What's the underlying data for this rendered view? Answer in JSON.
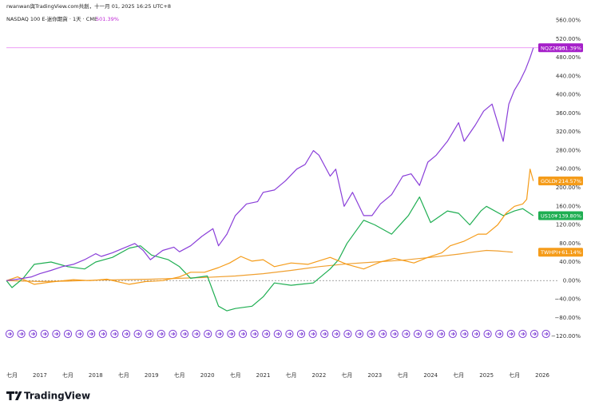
{
  "chart_data": {
    "type": "line",
    "credit": "rwanwan與TradingView.com共創，十一月 01, 2025 16:25 UTC+8",
    "title": "NASDAQ 100 E-迷你期貨 · 1天 · CME",
    "title_value": "501.39%",
    "brand": "TradingView",
    "xlim": [
      2016.4,
      2026.3
    ],
    "xticks": [
      {
        "value": 2016.5,
        "label": "七月"
      },
      2017,
      {
        "value": 2017.5,
        "label": "七月"
      },
      2018,
      {
        "value": 2018.5,
        "label": "七月"
      },
      2019,
      {
        "value": 2019.5,
        "label": "七月"
      },
      2020,
      {
        "value": 2020.5,
        "label": "七月"
      },
      2021,
      {
        "value": 2021.5,
        "label": "七月"
      },
      2022,
      {
        "value": 2022.5,
        "label": "七月"
      },
      2023,
      {
        "value": 2023.5,
        "label": "七月"
      },
      2024,
      {
        "value": 2024.5,
        "label": "七月"
      },
      2025,
      {
        "value": 2025.5,
        "label": "七月"
      },
      2026
    ],
    "ylim": [
      -144,
      587
    ],
    "yticks": [
      {
        "value": 560,
        "label": "560.00%"
      },
      {
        "value": 520,
        "label": "520.00%"
      },
      {
        "value": 480,
        "label": "480.00%"
      },
      {
        "value": 440,
        "label": "440.00%"
      },
      {
        "value": 400,
        "label": "400.00%"
      },
      {
        "value": 360,
        "label": "360.00%"
      },
      {
        "value": 320,
        "label": "320.00%"
      },
      {
        "value": 280,
        "label": "280.00%"
      },
      {
        "value": 240,
        "label": "240.00%"
      },
      {
        "value": 200,
        "label": "200.00%"
      },
      {
        "value": 160,
        "label": "160.00%"
      },
      {
        "value": 120,
        "label": "120.00%"
      },
      {
        "value": 80,
        "label": "80.00%"
      },
      {
        "value": 40,
        "label": "40.00%"
      },
      {
        "value": 0,
        "label": "0.00%"
      },
      {
        "value": -40,
        "label": "−40.00%"
      },
      {
        "value": -80,
        "label": "−80.00%"
      },
      {
        "value": -120,
        "label": "−120.00%"
      }
    ],
    "series": [
      {
        "name": "NQZ2025",
        "color": "#8a3fd9",
        "label_color": "#a51fc9",
        "end_label": {
          "value": 501.39,
          "label": "+501.39%"
        },
        "x": [
          2016.4,
          2016.6,
          2016.85,
          2017.0,
          2017.2,
          2017.4,
          2017.6,
          2017.8,
          2018.0,
          2018.1,
          2018.3,
          2018.5,
          2018.7,
          2018.85,
          2018.98,
          2019.2,
          2019.4,
          2019.5,
          2019.7,
          2019.9,
          2020.1,
          2020.2,
          2020.35,
          2020.5,
          2020.7,
          2020.9,
          2021.0,
          2021.2,
          2021.4,
          2021.6,
          2021.75,
          2021.9,
          2022.0,
          2022.2,
          2022.3,
          2022.45,
          2022.6,
          2022.8,
          2022.95,
          2023.1,
          2023.3,
          2023.5,
          2023.65,
          2023.8,
          2023.95,
          2024.1,
          2024.3,
          2024.5,
          2024.6,
          2024.8,
          2024.95,
          2025.1,
          2025.2,
          2025.3,
          2025.4,
          2025.5,
          2025.6,
          2025.7,
          2025.78,
          2025.84
        ],
        "values": [
          0,
          3,
          8,
          15,
          22,
          30,
          35,
          45,
          58,
          52,
          60,
          70,
          80,
          65,
          45,
          65,
          72,
          62,
          75,
          95,
          112,
          75,
          100,
          140,
          165,
          170,
          190,
          195,
          215,
          240,
          250,
          280,
          270,
          225,
          240,
          160,
          190,
          140,
          140,
          165,
          185,
          225,
          230,
          205,
          255,
          270,
          300,
          340,
          300,
          335,
          365,
          380,
          340,
          300,
          380,
          410,
          430,
          455,
          480,
          501.39
        ]
      },
      {
        "name": "GOLD",
        "color": "#f59c1a",
        "label_color": "#f59c1a",
        "end_label": {
          "value": 214.57,
          "label": "+214.57%"
        },
        "x": [
          2016.4,
          2016.6,
          2016.9,
          2017.2,
          2017.6,
          2017.9,
          2018.2,
          2018.6,
          2018.9,
          2019.2,
          2019.5,
          2019.7,
          2019.95,
          2020.2,
          2020.4,
          2020.6,
          2020.8,
          2021.0,
          2021.2,
          2021.5,
          2021.8,
          2022.2,
          2022.5,
          2022.8,
          2023.1,
          2023.35,
          2023.7,
          2023.95,
          2024.2,
          2024.35,
          2024.6,
          2024.85,
          2025.0,
          2025.2,
          2025.35,
          2025.5,
          2025.65,
          2025.72,
          2025.78,
          2025.84
        ],
        "values": [
          0,
          8,
          -8,
          -3,
          2,
          0,
          3,
          -8,
          -2,
          0,
          8,
          18,
          18,
          28,
          38,
          52,
          42,
          45,
          30,
          38,
          35,
          50,
          35,
          25,
          40,
          48,
          38,
          50,
          60,
          75,
          85,
          100,
          100,
          120,
          145,
          160,
          165,
          175,
          240,
          214.57
        ]
      },
      {
        "name": "US10Y",
        "color": "#1fae52",
        "label_color": "#1fae52",
        "end_label": {
          "value": 139.8,
          "label": "+139.80%"
        },
        "x": [
          2016.4,
          2016.5,
          2016.7,
          2016.9,
          2017.2,
          2017.5,
          2017.8,
          2018.0,
          2018.3,
          2018.6,
          2018.8,
          2019.0,
          2019.3,
          2019.5,
          2019.7,
          2020.0,
          2020.2,
          2020.35,
          2020.5,
          2020.8,
          2021.0,
          2021.2,
          2021.5,
          2021.9,
          2022.2,
          2022.35,
          2022.5,
          2022.65,
          2022.8,
          2023.0,
          2023.3,
          2023.6,
          2023.8,
          2024.0,
          2024.3,
          2024.5,
          2024.7,
          2024.9,
          2025.0,
          2025.3,
          2025.5,
          2025.65,
          2025.84
        ],
        "values": [
          0,
          -15,
          5,
          35,
          40,
          30,
          25,
          40,
          50,
          70,
          75,
          55,
          45,
          30,
          5,
          10,
          -55,
          -65,
          -60,
          -55,
          -35,
          -5,
          -10,
          -5,
          25,
          45,
          80,
          105,
          130,
          120,
          100,
          140,
          180,
          125,
          150,
          145,
          120,
          150,
          160,
          140,
          150,
          155,
          139.8
        ]
      },
      {
        "name": "TWHPI",
        "color": "#f0a030",
        "label_color": "#f59c1a",
        "end_label": {
          "value": 61.14,
          "label": "+61.14%"
        },
        "x": [
          2016.4,
          2017.0,
          2017.5,
          2018.0,
          2018.5,
          2019.0,
          2019.5,
          2020.0,
          2020.5,
          2021.0,
          2021.5,
          2022.0,
          2022.5,
          2023.0,
          2023.5,
          2024.0,
          2024.5,
          2024.8,
          2025.0,
          2025.2,
          2025.47
        ],
        "values": [
          0,
          -2,
          -1,
          1,
          2,
          3,
          5,
          7,
          10,
          15,
          22,
          30,
          36,
          40,
          44,
          50,
          57,
          62,
          65,
          64,
          61.14
        ]
      }
    ]
  }
}
